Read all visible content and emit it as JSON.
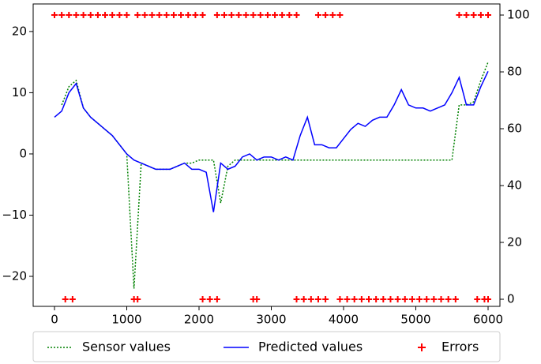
{
  "chart_data": {
    "type": "line",
    "x": [
      0,
      100,
      200,
      300,
      400,
      500,
      600,
      700,
      800,
      900,
      1000,
      1100,
      1200,
      1300,
      1400,
      1500,
      1600,
      1700,
      1800,
      1900,
      2000,
      2100,
      2200,
      2300,
      2400,
      2500,
      2600,
      2700,
      2800,
      2900,
      3000,
      3100,
      3200,
      3300,
      3400,
      3500,
      3600,
      3700,
      3800,
      3900,
      4000,
      4100,
      4200,
      4300,
      4400,
      4500,
      4600,
      4700,
      4800,
      4900,
      5000,
      5100,
      5200,
      5300,
      5400,
      5500,
      5600,
      5700,
      5800,
      5900,
      6000
    ],
    "series": [
      {
        "name": "Sensor values",
        "color": "#008000",
        "style": "dotted",
        "values": [
          null,
          8,
          11,
          12,
          7.5,
          6,
          5,
          4,
          3,
          1.5,
          0,
          -22,
          -1.5,
          -2,
          -2.5,
          -2.5,
          -2.5,
          -2,
          -1.5,
          -1.5,
          -1,
          -1,
          -1,
          -8,
          -2,
          -1,
          -1,
          -1,
          -1,
          -1,
          -1,
          -1,
          -1,
          -1,
          -1,
          -1,
          -1,
          -1,
          -1,
          -1,
          -1,
          -1,
          -1,
          -1,
          -1,
          -1,
          -1,
          -1,
          -1,
          -1,
          -1,
          -1,
          -1,
          -1,
          -1,
          -1,
          8,
          8,
          8.5,
          12,
          15
        ]
      },
      {
        "name": "Predicted values",
        "color": "#0000ff",
        "style": "solid",
        "values": [
          6,
          7,
          10,
          11.5,
          7.5,
          6,
          5,
          4,
          3,
          1.5,
          0,
          -1,
          -1.5,
          -2,
          -2.5,
          -2.5,
          -2.5,
          -2,
          -1.5,
          -2.5,
          -2.5,
          -3,
          -9.5,
          -1.5,
          -2.5,
          -2,
          -0.5,
          0,
          -1,
          -0.5,
          -0.5,
          -1,
          -0.5,
          -1,
          3,
          6,
          1.5,
          1.5,
          1,
          1,
          2.5,
          4,
          5,
          4.5,
          5.5,
          6,
          6,
          8,
          10.5,
          8,
          7.5,
          7.5,
          7,
          7.5,
          8,
          10,
          12.5,
          8,
          8,
          11,
          13.5
        ]
      },
      {
        "name": "Errors",
        "color": "#ff0000",
        "style": "marker",
        "axis": "y2",
        "x": [
          0,
          100,
          200,
          300,
          400,
          500,
          600,
          700,
          800,
          900,
          1000,
          1150,
          1250,
          1350,
          1450,
          1550,
          1650,
          1750,
          1850,
          1950,
          2050,
          2250,
          2350,
          2450,
          2550,
          2650,
          2750,
          2850,
          2950,
          3050,
          3150,
          3250,
          3350,
          3650,
          3750,
          3850,
          3950,
          5600,
          5700,
          5800,
          5900,
          6000,
          150,
          250,
          1100,
          1150,
          2050,
          2150,
          2250,
          2750,
          2800,
          3350,
          3450,
          3550,
          3650,
          3750,
          3950,
          4050,
          4150,
          4250,
          4350,
          4450,
          4550,
          4650,
          4750,
          4850,
          4950,
          5050,
          5150,
          5250,
          5350,
          5450,
          5550,
          5850,
          5950,
          6000
        ],
        "values": [
          100,
          100,
          100,
          100,
          100,
          100,
          100,
          100,
          100,
          100,
          100,
          100,
          100,
          100,
          100,
          100,
          100,
          100,
          100,
          100,
          100,
          100,
          100,
          100,
          100,
          100,
          100,
          100,
          100,
          100,
          100,
          100,
          100,
          100,
          100,
          100,
          100,
          100,
          100,
          100,
          100,
          100,
          0,
          0,
          0,
          0,
          0,
          0,
          0,
          0,
          0,
          0,
          0,
          0,
          0,
          0,
          0,
          0,
          0,
          0,
          0,
          0,
          0,
          0,
          0,
          0,
          0,
          0,
          0,
          0,
          0,
          0,
          0,
          0,
          0,
          0
        ]
      }
    ],
    "xlim": [
      -295,
      6164
    ],
    "xticks": [
      0,
      1000,
      2000,
      3000,
      4000,
      5000,
      6000
    ],
    "ylim": [
      -24.9,
      24.5
    ],
    "yticks": [
      {
        "value": -20,
        "label": "−20"
      },
      {
        "value": -10,
        "label": "−10"
      },
      0,
      10,
      20
    ],
    "y2lim": [
      -2.5,
      103.9
    ],
    "y2ticks": [
      0,
      20,
      40,
      60,
      80,
      100
    ],
    "legend": "bottom"
  }
}
